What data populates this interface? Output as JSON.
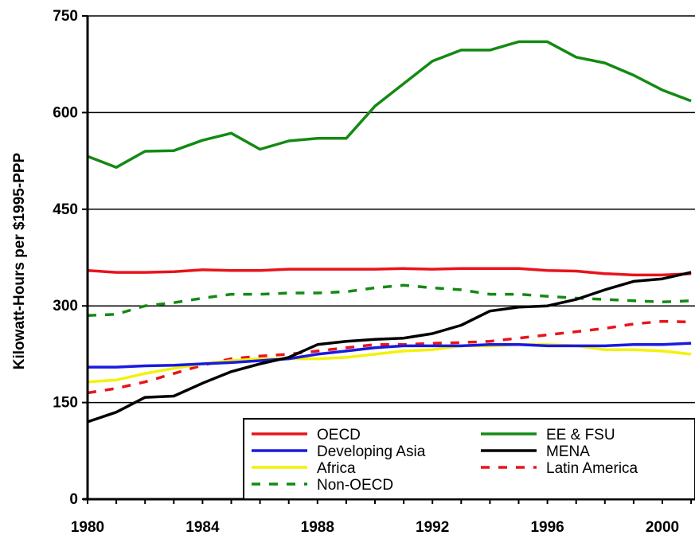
{
  "chart_data": {
    "type": "line",
    "title": "",
    "xlabel": "",
    "ylabel": "Kilowatt-Hours per $1995-PPP",
    "xlim": [
      1980,
      2001
    ],
    "ylim": [
      0,
      750
    ],
    "y_ticks": [
      0,
      150,
      300,
      450,
      600,
      750
    ],
    "x_ticks": [
      1980,
      1984,
      1988,
      1992,
      1996,
      2000
    ],
    "y_tick_labels": [
      "0",
      "150",
      "300",
      "450",
      "600",
      "750"
    ],
    "x_tick_labels": [
      "1980",
      "1984",
      "1988",
      "1992",
      "1996",
      "2000"
    ],
    "grid": "horizontal",
    "legend_position": "bottom-center",
    "x": [
      1980,
      1981,
      1982,
      1983,
      1984,
      1985,
      1986,
      1987,
      1988,
      1989,
      1990,
      1991,
      1992,
      1993,
      1994,
      1995,
      1996,
      1997,
      1998,
      1999,
      2000,
      2001
    ],
    "series": [
      {
        "name": "OECD",
        "color": "#e8141c",
        "dash": "solid",
        "values": [
          355,
          352,
          352,
          353,
          356,
          355,
          355,
          357,
          357,
          357,
          357,
          358,
          357,
          358,
          358,
          358,
          355,
          354,
          350,
          348,
          348,
          350
        ]
      },
      {
        "name": "EE & FSU",
        "color": "#138a13",
        "dash": "solid",
        "values": [
          532,
          515,
          540,
          541,
          557,
          568,
          543,
          556,
          560,
          560,
          610,
          645,
          680,
          697,
          697,
          710,
          710,
          686,
          677,
          658,
          635,
          618
        ]
      },
      {
        "name": "Developing Asia",
        "color": "#1a1ae0",
        "dash": "solid",
        "values": [
          205,
          205,
          207,
          208,
          210,
          212,
          215,
          218,
          225,
          230,
          235,
          238,
          238,
          238,
          240,
          240,
          238,
          238,
          238,
          240,
          240,
          242
        ]
      },
      {
        "name": "MENA",
        "color": "#000000",
        "dash": "solid",
        "values": [
          120,
          135,
          158,
          160,
          180,
          198,
          210,
          220,
          240,
          245,
          248,
          250,
          257,
          270,
          292,
          298,
          300,
          310,
          325,
          338,
          342,
          352
        ]
      },
      {
        "name": "Africa",
        "color": "#f2f20a",
        "dash": "solid",
        "values": [
          182,
          185,
          195,
          203,
          210,
          215,
          218,
          218,
          218,
          220,
          225,
          230,
          232,
          238,
          238,
          240,
          240,
          238,
          232,
          232,
          230,
          225
        ]
      },
      {
        "name": "Latin America",
        "color": "#e8141c",
        "dash": "dashed",
        "values": [
          165,
          172,
          182,
          195,
          208,
          218,
          222,
          225,
          230,
          235,
          240,
          240,
          242,
          243,
          245,
          250,
          255,
          260,
          265,
          272,
          276,
          275
        ]
      },
      {
        "name": "Non-OECD",
        "color": "#138a13",
        "dash": "dashed",
        "values": [
          285,
          287,
          300,
          305,
          312,
          318,
          318,
          320,
          320,
          322,
          328,
          332,
          328,
          325,
          318,
          318,
          315,
          312,
          310,
          308,
          306,
          308
        ]
      }
    ]
  }
}
